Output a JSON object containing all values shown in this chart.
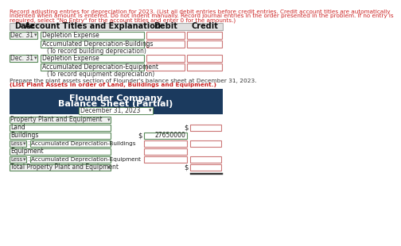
{
  "instruction_line1": "Record adjusting entries for depreciation for 2023. (List all debit entries before credit entries. Credit account titles are automatically",
  "instruction_line2": "indented when amount is entered. Do not indent manually. Record journal entries in the order presented in the problem. If no entry is",
  "instruction_line3": "required, select \"No Entry\" for the account titles and enter 0 for the amounts.)",
  "col_headers": [
    "Date",
    "Account Titles and Explanation",
    "Debit",
    "Credit"
  ],
  "header_bg": "#1b3a5e",
  "header_title1": "Flounder Company",
  "header_title2": "Balance Sheet (Partial)",
  "header_date_dropdown": "December 31, 2023",
  "prepare_text1": "Prepare the plant assets section of Flounder’s balance sheet at December 31, 2023. ",
  "prepare_text2": "(List Plant Assets in order of Land, Buildings and Equipment.)",
  "bg_color": "#ffffff",
  "light_gray": "#e8e8e8",
  "green_border": "#5a8a5a",
  "red_border": "#cc7777",
  "dark_text": "#222222",
  "red_text": "#cc2222"
}
